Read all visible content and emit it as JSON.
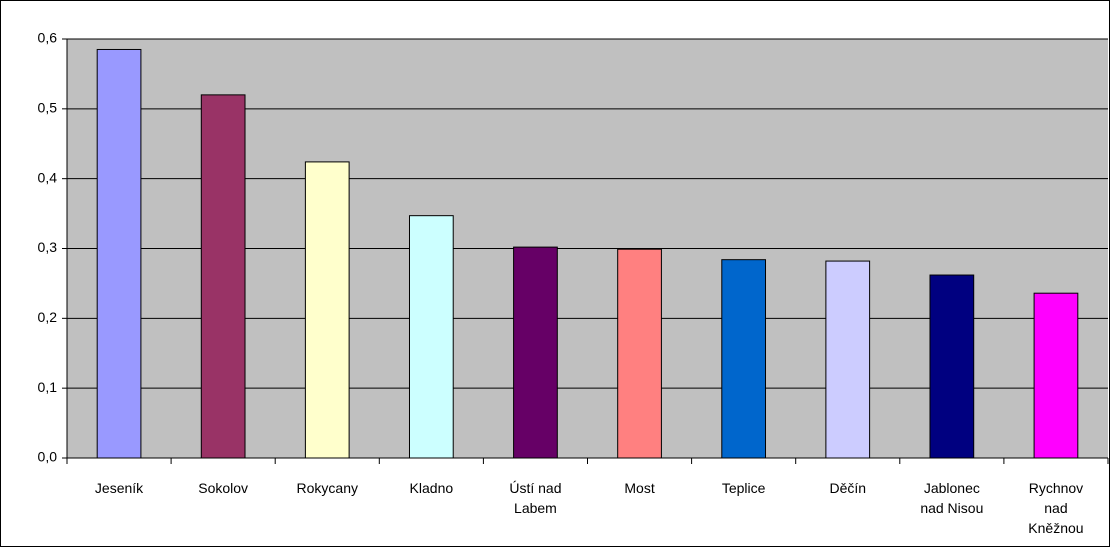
{
  "chart_data": {
    "type": "bar",
    "categories": [
      "Jeseník",
      "Sokolov",
      "Rokycany",
      "Kladno",
      "Ústí nad Labem",
      "Most",
      "Teplice",
      "Děčín",
      "Jablonec nad Nisou",
      "Rychnov nad Kněžnou"
    ],
    "values": [
      0.585,
      0.52,
      0.424,
      0.347,
      0.302,
      0.299,
      0.284,
      0.282,
      0.262,
      0.236
    ],
    "colors": [
      "#9999ff",
      "#993366",
      "#ffffcc",
      "#ccffff",
      "#660066",
      "#ff8080",
      "#0066cc",
      "#ccccff",
      "#000080",
      "#ff00ff"
    ],
    "ylim": [
      0,
      0.6
    ],
    "yticks": [
      {
        "value": 0,
        "label": "0,0"
      },
      {
        "value": 0.1,
        "label": "0,1"
      },
      {
        "value": 0.2,
        "label": "0,2"
      },
      {
        "value": 0.3,
        "label": "0,3"
      },
      {
        "value": 0.4,
        "label": "0,4"
      },
      {
        "value": 0.5,
        "label": "0,5"
      },
      {
        "value": 0.6,
        "label": "0,6"
      }
    ],
    "grid": true,
    "plot_background": "#c0c0c0"
  }
}
